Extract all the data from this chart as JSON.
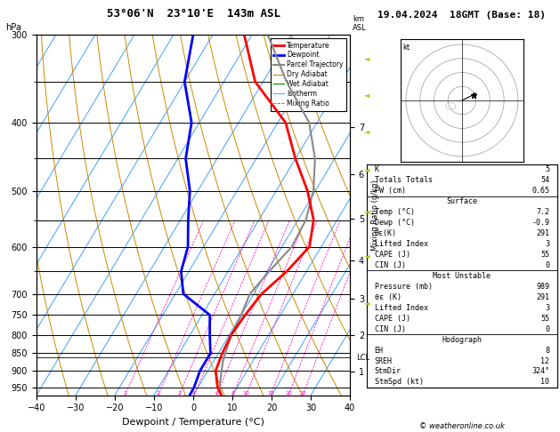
{
  "title_left": "53°06'N  23°10'E  143m ASL",
  "title_right": "19.04.2024  18GMT (Base: 18)",
  "xlabel": "Dewpoint / Temperature (°C)",
  "ylabel_left": "hPa",
  "copyright": "© weatheronline.co.uk",
  "pressure_levels_minor": [
    300,
    350,
    400,
    450,
    500,
    550,
    600,
    650,
    700,
    750,
    800,
    850,
    900,
    950
  ],
  "pressure_major_labels": [
    300,
    400,
    500,
    600,
    700,
    750,
    800,
    850,
    900,
    950
  ],
  "x_range": [
    -40,
    40
  ],
  "skew_factor": 55.0,
  "temp_profile_p": [
    975,
    950,
    900,
    875,
    850,
    800,
    750,
    700,
    650,
    600,
    550,
    500,
    450,
    400,
    350,
    300
  ],
  "temp_profile_t": [
    7.2,
    5.0,
    2.0,
    1.5,
    1.0,
    0.5,
    1.0,
    2.0,
    5.0,
    7.0,
    4.0,
    -2.0,
    -10.0,
    -18.0,
    -32.0,
    -42.0
  ],
  "dewp_profile_p": [
    975,
    950,
    900,
    850,
    800,
    750,
    700,
    650,
    600,
    550,
    500,
    450,
    400,
    350,
    300
  ],
  "dewp_profile_t": [
    -0.9,
    -1.0,
    -2.0,
    -2.0,
    -5.0,
    -8.0,
    -18.0,
    -22.0,
    -24.0,
    -28.0,
    -32.0,
    -38.0,
    -42.0,
    -50.0,
    -55.0
  ],
  "parcel_profile_p": [
    975,
    950,
    900,
    875,
    850,
    800,
    750,
    700,
    650,
    600,
    550,
    500,
    450,
    400,
    350,
    300
  ],
  "parcel_profile_t": [
    7.2,
    5.5,
    3.5,
    2.5,
    1.8,
    0.5,
    0.0,
    -1.0,
    0.5,
    2.5,
    2.0,
    -0.5,
    -5.0,
    -12.0,
    -24.0,
    -36.0
  ],
  "isotherm_color": "#55aaff",
  "dry_adiabat_color": "#cc8800",
  "wet_adiabat_color": "#008800",
  "mixing_ratio_color": "#ff00cc",
  "mixing_ratio_values": [
    1,
    2,
    3,
    4,
    6,
    8,
    10,
    15,
    20,
    25
  ],
  "temp_color": "#ff0000",
  "dewp_color": "#0000ff",
  "parcel_color": "#888888",
  "lcl_pressure": 862,
  "km_ticks": [
    1,
    2,
    3,
    4,
    5,
    6,
    7
  ],
  "km_pressures": [
    902,
    802,
    712,
    628,
    548,
    474,
    406
  ],
  "stats": {
    "K": 5,
    "Totals_Totals": 54,
    "PW_cm": 0.65,
    "Surface_Temp": 7.2,
    "Surface_Dewp": -0.9,
    "Surface_thetaE": 291,
    "Surface_LI": 3,
    "Surface_CAPE": 55,
    "Surface_CIN": 0,
    "MU_Pressure": 989,
    "MU_thetaE": 291,
    "MU_LI": 3,
    "MU_CAPE": 55,
    "MU_CIN": 0,
    "EH": 8,
    "SREH": 12,
    "StmDir": 324,
    "StmSpd": 10
  },
  "background_color": "#ffffff"
}
